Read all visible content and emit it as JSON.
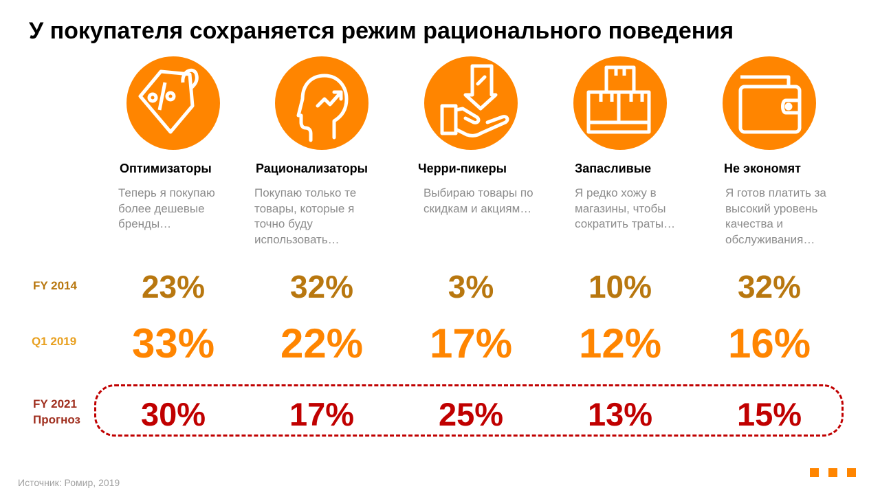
{
  "title": "У покупателя сохраняется режим рационального поведения",
  "segments": [
    {
      "name": "Оптимизаторы",
      "desc": "Теперь я покупаю более дешевые бренды…",
      "icon": "price-tag-percent-icon"
    },
    {
      "name": "Рационализаторы",
      "desc": "Покупаю только те товары, которые я точно буду использовать…",
      "icon": "head-growth-icon"
    },
    {
      "name": "Черри-пикеры",
      "desc": "Выбираю товары по скидкам и акциям…",
      "icon": "hand-discount-icon"
    },
    {
      "name": "Запасливые",
      "desc": "Я редко хожу в магазины, чтобы сократить траты…",
      "icon": "boxes-icon"
    },
    {
      "name": "Не экономят",
      "desc": "Я готов платить за высокий уровень качества и обслуживания…",
      "icon": "wallet-icon"
    }
  ],
  "rows": [
    {
      "label": "FY 2014",
      "values": [
        "23%",
        "32%",
        "3%",
        "10%",
        "32%"
      ],
      "label_color": "#b8770f",
      "value_color": "#b8770f"
    },
    {
      "label": "Q1 2019",
      "values": [
        "33%",
        "22%",
        "17%",
        "12%",
        "16%"
      ],
      "label_color": "#e8a020",
      "value_color": "#ff8500"
    },
    {
      "label": "FY 2021",
      "label2": "Прогноз",
      "values": [
        "30%",
        "17%",
        "25%",
        "13%",
        "15%"
      ],
      "label_color": "#a03020",
      "value_color": "#c00000"
    }
  ],
  "source": "Источник: Ромир, 2019",
  "colors": {
    "accent": "#ff8500",
    "forecast": "#c00000"
  }
}
